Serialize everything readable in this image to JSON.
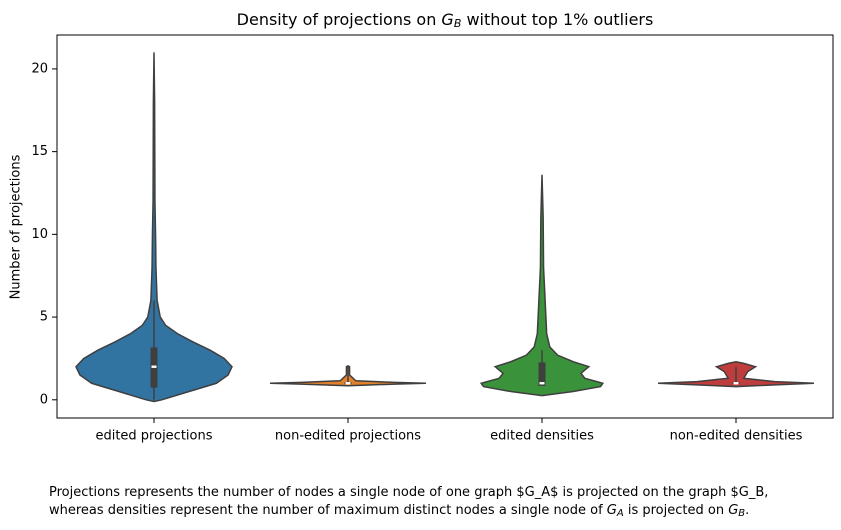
{
  "chart_data": {
    "type": "violin",
    "title": [
      "Density of projections on ",
      "G",
      "B",
      " without top 1% outliers"
    ],
    "y_label": "Number of projections",
    "caption": [
      [
        "Projections represents the number of nodes a single node of one graph $G_A$ is projected on the graph $G_B,"
      ],
      [
        "whereas densities represent the number of maximum distinct nodes a single node of ",
        "G",
        "A",
        " is projected on ",
        "G",
        "B",
        "."
      ]
    ],
    "categories": [
      "edited projections",
      "non-edited projections",
      "edited densities",
      "non-edited densities"
    ],
    "ylim": [
      -1.1,
      22.05
    ],
    "yticks": [
      0,
      5,
      10,
      15,
      20
    ],
    "series": [
      {
        "color": "#3274a1",
        "density": {
          "y": [
            -0.1,
            0,
            0.5,
            1,
            1.5,
            2,
            2.5,
            3,
            3.5,
            4,
            4.5,
            5,
            6,
            8,
            10,
            12,
            15,
            18,
            21
          ],
          "width": [
            0,
            0.1,
            0.45,
            0.8,
            0.95,
            1.0,
            0.9,
            0.72,
            0.5,
            0.3,
            0.15,
            0.08,
            0.04,
            0.025,
            0.02,
            0.012,
            0.01,
            0.008,
            0
          ]
        },
        "q1": 0.8,
        "median": 2,
        "q3": 3.1,
        "whisker": [
          0,
          6
        ]
      },
      {
        "color": "#e1812c",
        "density": {
          "y": [
            0.85,
            0.95,
            1,
            1.05,
            1.15,
            1.5,
            2,
            2.05
          ],
          "width": [
            0,
            0.6,
            1.0,
            0.6,
            0.1,
            0.02,
            0.02,
            0
          ]
        },
        "q1": 1,
        "median": 1,
        "q3": 1,
        "whisker": [
          1,
          2
        ]
      },
      {
        "color": "#3a923a",
        "density": {
          "y": [
            0.25,
            0.5,
            0.8,
            1.0,
            1.3,
            1.6,
            2.0,
            2.3,
            2.7,
            3.2,
            4,
            5,
            6,
            8,
            11,
            13.6
          ],
          "width": [
            0,
            0.4,
            0.75,
            0.78,
            0.55,
            0.5,
            0.6,
            0.4,
            0.2,
            0.1,
            0.06,
            0.05,
            0.04,
            0.02,
            0.015,
            0
          ]
        },
        "q1": 0.9,
        "median": 1,
        "q3": 2.2,
        "whisker": [
          0.9,
          3
        ]
      },
      {
        "color": "#c03d3e",
        "density": {
          "y": [
            0.8,
            0.9,
            1.0,
            1.1,
            1.3,
            1.7,
            2.0,
            2.2,
            2.3
          ],
          "width": [
            0,
            0.5,
            1.0,
            0.5,
            0.1,
            0.15,
            0.25,
            0.1,
            0
          ]
        },
        "q1": 1,
        "median": 1,
        "q3": 1,
        "whisker": [
          1,
          2
        ]
      }
    ]
  }
}
